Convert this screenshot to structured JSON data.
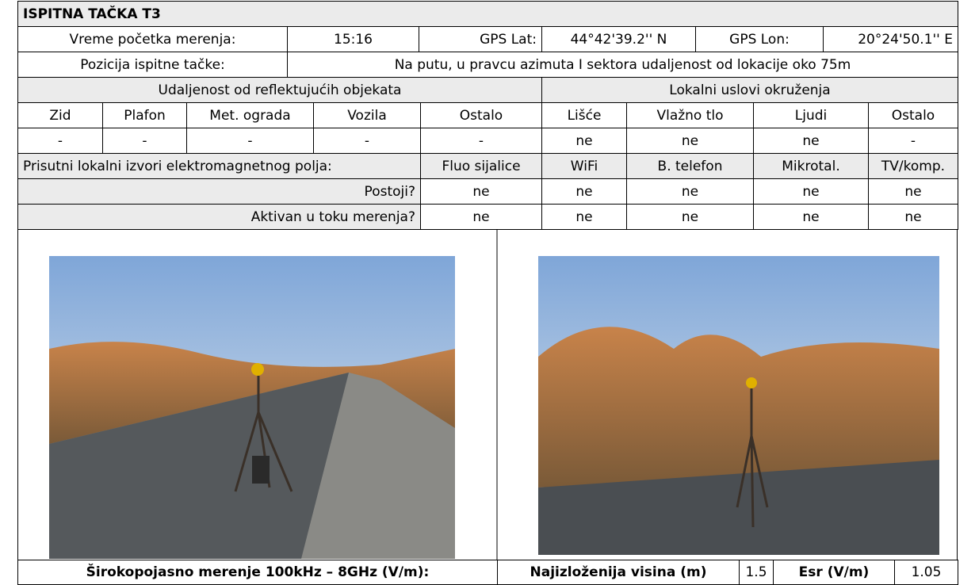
{
  "title": "ISPITNA TAČKA T3",
  "measurement": {
    "start_label": "Vreme početka merenja:",
    "start_time": "15:16",
    "lat_label": "GPS Lat:",
    "lat": "44°42'39.2'' N",
    "lon_label": "GPS Lon:",
    "lon": "20°24'50.1'' E"
  },
  "position": {
    "label": "Pozicija ispitne tačke:",
    "value": "Na putu, u pravcu  azimuta I sektora udaljenost od lokacije oko 75m"
  },
  "reflective": {
    "title": "Udaljenost od reflektujućih objekata",
    "columns": [
      "Zid",
      "Plafon",
      "Met. ograda",
      "Vozila",
      "Ostalo"
    ],
    "values": [
      "-",
      "-",
      "-",
      "-",
      "-"
    ]
  },
  "environment": {
    "title": "Lokalni uslovi okruženja",
    "columns": [
      "Lišće",
      "Vlažno tlo",
      "Ljudi",
      "Ostalo"
    ],
    "values": [
      "ne",
      "ne",
      "ne",
      "-"
    ]
  },
  "sources": {
    "label": "Prisutni lokalni izvori elektromagnetnog polja:",
    "columns": [
      "Fluo sijalice",
      "WiFi",
      "B. telefon",
      "Mikrotal.",
      "TV/komp."
    ],
    "exists_label": "Postoji?",
    "exists": [
      "ne",
      "ne",
      "ne",
      "ne",
      "ne"
    ],
    "active_label": "Aktivan u toku merenja?",
    "active": [
      "ne",
      "ne",
      "ne",
      "ne",
      "ne"
    ]
  },
  "footer": {
    "broadband_label": "Širokopojasno merenje 100kHz – 8GHz (V/m):",
    "height_label": "Najizloženija visina (m)",
    "height": 1.5,
    "esr_label": "Esr (V/m)",
    "esr": 1.05
  }
}
